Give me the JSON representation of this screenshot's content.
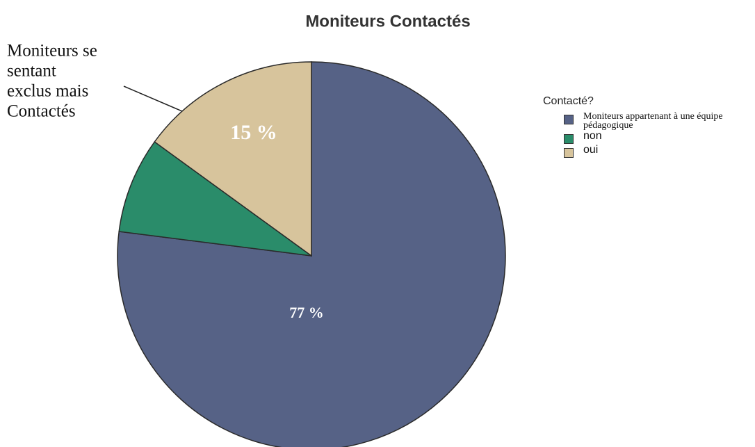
{
  "chart_data": {
    "type": "pie",
    "title": "Moniteurs Contactés",
    "legend_title": "Contacté?",
    "categories": [
      "Moniteurs appartenant à une équipe pédagogique",
      "non",
      "oui"
    ],
    "values": [
      77,
      8,
      15
    ],
    "value_labels": [
      "77 %",
      null,
      "15 %"
    ],
    "colors": [
      "#566286",
      "#2a8c6a",
      "#d7c49c"
    ],
    "legend": "right",
    "annotation": [
      "Moniteurs se",
      "sentant",
      "exclus mais",
      "Contactés"
    ]
  }
}
